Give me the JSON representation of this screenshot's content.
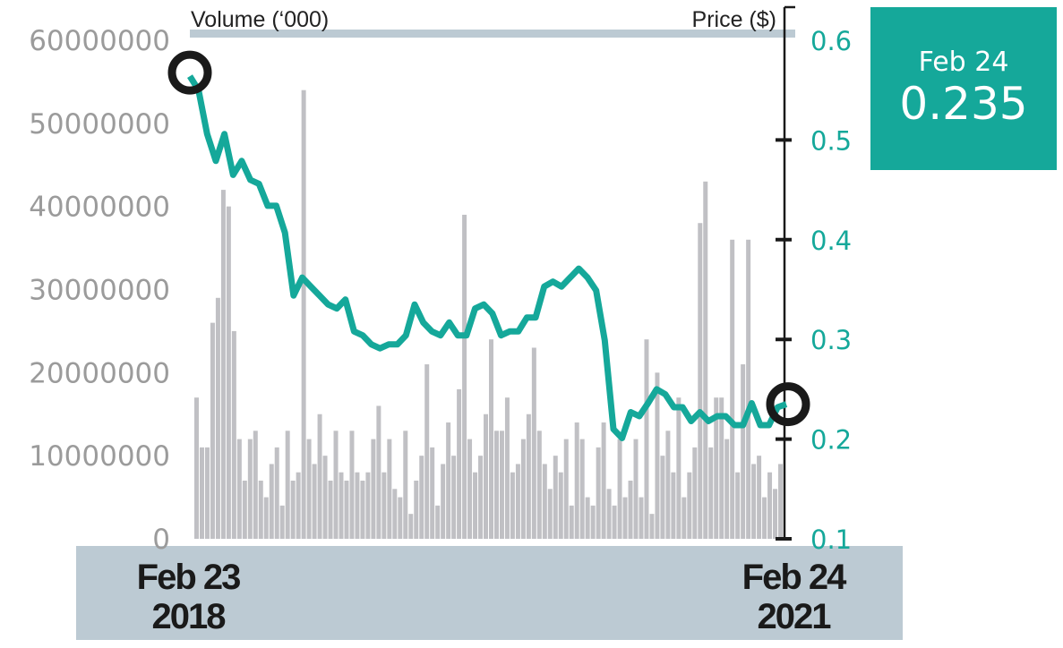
{
  "chart_data": {
    "type": "bar+line",
    "title": "",
    "left_axis_label": "Volume (‘000)",
    "right_axis_label": "Price ($)",
    "volume_ylim": [
      0,
      60000000
    ],
    "volume_ticks": [
      "0",
      "10000000",
      "20000000",
      "30000000",
      "40000000",
      "50000000",
      "60000000"
    ],
    "price_ylim": [
      0.1,
      0.6
    ],
    "price_ticks": [
      "0.1",
      "0.2",
      "0.3",
      "0.4",
      "0.5",
      "0.6"
    ],
    "x_labels": [
      {
        "line1": "Feb 23",
        "line2": "2018"
      },
      {
        "line1": "Feb 24",
        "line2": "2021"
      }
    ],
    "volume_millions": [
      17,
      11,
      11,
      26,
      29,
      42,
      40,
      25,
      12,
      7,
      12,
      13,
      7,
      5,
      9,
      11,
      4,
      13,
      7,
      8,
      54,
      12,
      9,
      15,
      10,
      7,
      13,
      8,
      7,
      13,
      8,
      7,
      8,
      12,
      16,
      8,
      12,
      6,
      5,
      13,
      3,
      7,
      10,
      21,
      11,
      4,
      9,
      14,
      10,
      18,
      39,
      12,
      8,
      10,
      15,
      24,
      13,
      13,
      17,
      8,
      9,
      12,
      15,
      23,
      13,
      9,
      6,
      10,
      8,
      12,
      4,
      14,
      12,
      5,
      4,
      11,
      14,
      6,
      4,
      12,
      5,
      7,
      12,
      5,
      24,
      3,
      20,
      10,
      13,
      8,
      17,
      5,
      8,
      11,
      38,
      43,
      11,
      17,
      17,
      12,
      36,
      8,
      21,
      36,
      9,
      10,
      5,
      8,
      6,
      9
    ],
    "price_series": [
      0.564,
      0.55,
      0.506,
      0.479,
      0.506,
      0.465,
      0.479,
      0.46,
      0.456,
      0.434,
      0.434,
      0.407,
      0.344,
      0.362,
      0.353,
      0.344,
      0.335,
      0.331,
      0.34,
      0.308,
      0.304,
      0.295,
      0.291,
      0.295,
      0.295,
      0.304,
      0.335,
      0.317,
      0.308,
      0.304,
      0.317,
      0.304,
      0.304,
      0.331,
      0.335,
      0.326,
      0.304,
      0.308,
      0.308,
      0.322,
      0.322,
      0.353,
      0.358,
      0.353,
      0.362,
      0.371,
      0.362,
      0.349,
      0.299,
      0.21,
      0.201,
      0.227,
      0.223,
      0.236,
      0.25,
      0.245,
      0.232,
      0.232,
      0.218,
      0.227,
      0.218,
      0.223,
      0.223,
      0.214,
      0.214,
      0.236,
      0.214,
      0.214,
      0.232,
      0.235
    ],
    "callout": {
      "date": "Feb 24",
      "value": "0.235"
    },
    "colors": {
      "price": "#15a89a",
      "volume": "#c0c0c4",
      "band": "#bccad3",
      "marker": "#1a1a1a"
    }
  }
}
